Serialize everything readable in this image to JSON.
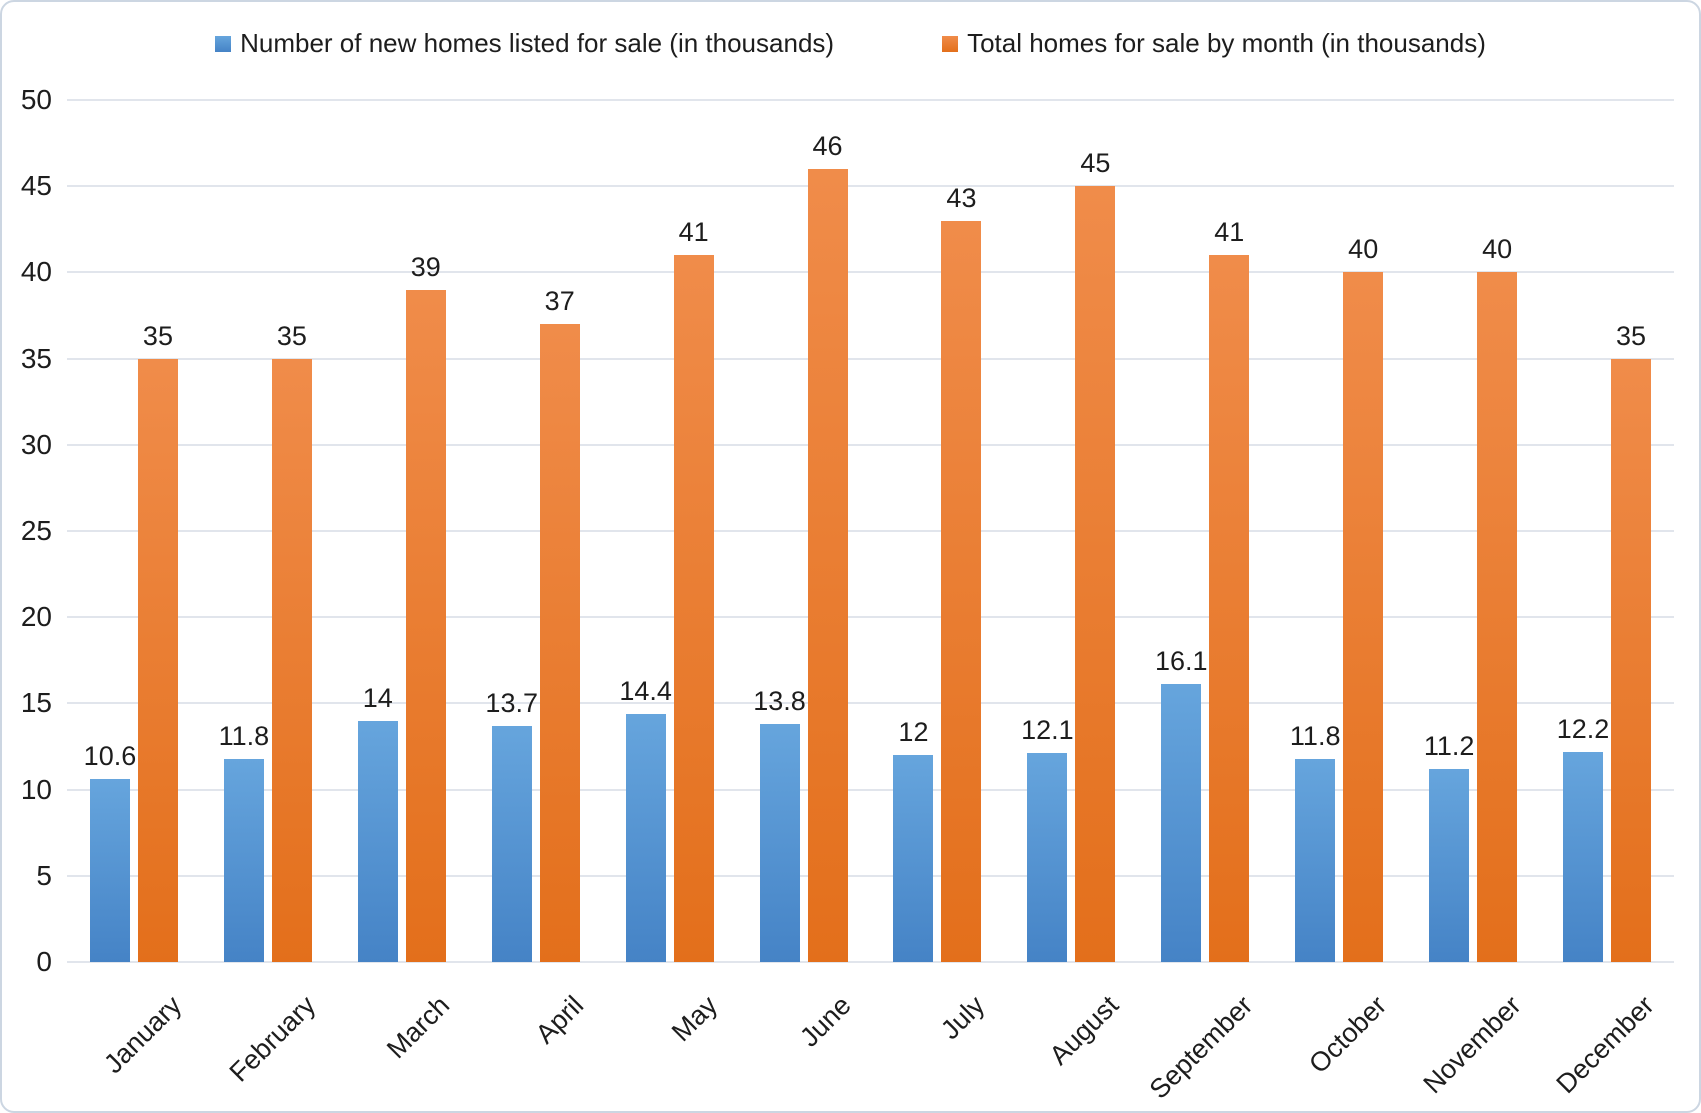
{
  "chart_data": {
    "type": "bar",
    "title": "",
    "xlabel": "",
    "ylabel": "",
    "categories": [
      "January",
      "February",
      "March",
      "April",
      "May",
      "June",
      "July",
      "August",
      "September",
      "October",
      "November",
      "December"
    ],
    "series": [
      {
        "name": "Number of new homes listed for sale (in thousands)",
        "values": [
          10.6,
          11.8,
          14,
          13.7,
          14.4,
          13.8,
          12,
          12.1,
          16.1,
          11.8,
          11.2,
          12.2
        ],
        "swatch_color": "#4e94d4",
        "gradient_top": "#66a5dd",
        "gradient_bottom": "#4583c6"
      },
      {
        "name": "Total homes for sale by month (in thousands)",
        "values": [
          35,
          35,
          39,
          37,
          41,
          46,
          43,
          45,
          41,
          40,
          40,
          35
        ],
        "swatch_color": "#ed7d31",
        "gradient_top": "#f08c4a",
        "gradient_bottom": "#e36f1b"
      }
    ],
    "ylim": [
      0,
      50
    ],
    "ytick_step": 5,
    "yticks": [
      0,
      5,
      10,
      15,
      20,
      25,
      30,
      35,
      40,
      45,
      50
    ],
    "grid": true,
    "legend_position": "top",
    "data_labels": true
  },
  "colors": {
    "gridline": "#e1e5ec",
    "frame_border": "#ccd6e2",
    "text": "#1d1d1d",
    "background": "#ffffff"
  }
}
